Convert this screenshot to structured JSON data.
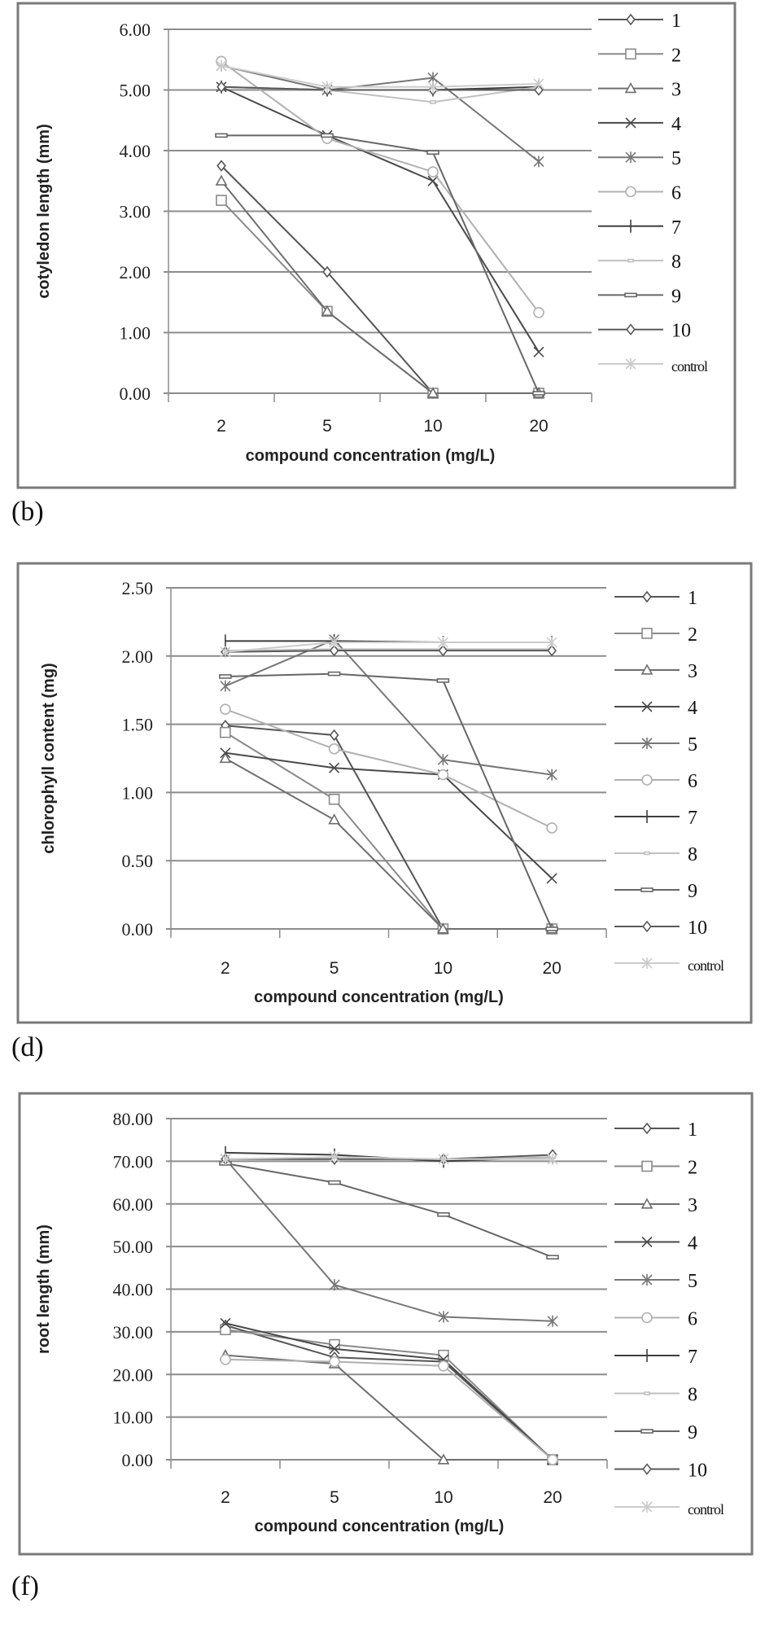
{
  "figure": {
    "panels": [
      {
        "id": "b",
        "label": "(b)"
      },
      {
        "id": "d",
        "label": "(d)"
      },
      {
        "id": "f",
        "label": "(f)"
      }
    ]
  },
  "legend": {
    "entries": [
      "1",
      "2",
      "3",
      "4",
      "5",
      "6",
      "7",
      "8",
      "9",
      "10",
      "control"
    ],
    "markers": [
      "diamond",
      "square",
      "triangle",
      "x-cross",
      "asterisk",
      "circle",
      "plus",
      "small-dash",
      "dash",
      "diamond",
      "asterisk"
    ],
    "colors": [
      "#555555",
      "#8a8a8a",
      "#6e6e6e",
      "#4a4a4a",
      "#777777",
      "#b0b0b0",
      "#3e3e3e",
      "#c0c0c0",
      "#666666",
      "#5a5a5a",
      "#cccccc"
    ]
  },
  "chart_data": [
    {
      "type": "line",
      "panel": "(b)",
      "title": "",
      "xlabel": "compound concentration (mg/L)",
      "ylabel": "cotyledon length (mm)",
      "categories": [
        "2",
        "5",
        "10",
        "20"
      ],
      "ylim": [
        0,
        6
      ],
      "yticks": [
        "0.00",
        "1.00",
        "2.00",
        "3.00",
        "4.00",
        "5.00",
        "6.00"
      ],
      "grid": true,
      "legend_position": "right",
      "series": [
        {
          "name": "1",
          "values": [
            3.75,
            2.0,
            0.0,
            0.0
          ]
        },
        {
          "name": "2",
          "values": [
            3.18,
            1.35,
            0.0,
            0.0
          ]
        },
        {
          "name": "3",
          "values": [
            3.5,
            1.35,
            0.0,
            0.0
          ]
        },
        {
          "name": "4",
          "values": [
            5.05,
            4.25,
            3.5,
            0.68
          ]
        },
        {
          "name": "5",
          "values": [
            5.4,
            5.0,
            5.2,
            3.82
          ]
        },
        {
          "name": "6",
          "values": [
            5.47,
            4.2,
            3.65,
            1.33
          ]
        },
        {
          "name": "7",
          "values": [
            5.05,
            5.0,
            5.0,
            5.05
          ]
        },
        {
          "name": "8",
          "values": [
            5.05,
            5.0,
            4.8,
            5.05
          ]
        },
        {
          "name": "9",
          "values": [
            4.25,
            4.25,
            3.97,
            0.0
          ]
        },
        {
          "name": "10",
          "values": [
            5.05,
            5.0,
            5.0,
            5.0
          ]
        },
        {
          "name": "control",
          "values": [
            5.4,
            5.05,
            5.05,
            5.1
          ]
        }
      ]
    },
    {
      "type": "line",
      "panel": "(d)",
      "title": "",
      "xlabel": "compound concentration (mg/L)",
      "ylabel": "chlorophyll content (mg)",
      "categories": [
        "2",
        "5",
        "10",
        "20"
      ],
      "ylim": [
        0,
        2.5
      ],
      "yticks": [
        "0.00",
        "0.50",
        "1.00",
        "1.50",
        "2.00",
        "2.50"
      ],
      "grid": true,
      "legend_position": "right",
      "series": [
        {
          "name": "1",
          "values": [
            1.49,
            1.42,
            0.0,
            0.0
          ]
        },
        {
          "name": "2",
          "values": [
            1.44,
            0.95,
            0.0,
            0.0
          ]
        },
        {
          "name": "3",
          "values": [
            1.25,
            0.8,
            0.0,
            0.0
          ]
        },
        {
          "name": "4",
          "values": [
            1.29,
            1.18,
            1.13,
            0.37
          ]
        },
        {
          "name": "5",
          "values": [
            1.78,
            2.12,
            1.24,
            1.13
          ]
        },
        {
          "name": "6",
          "values": [
            1.61,
            1.32,
            1.13,
            0.74
          ]
        },
        {
          "name": "7",
          "values": [
            2.11,
            2.11,
            2.1,
            2.1
          ]
        },
        {
          "name": "8",
          "values": [
            2.04,
            2.05,
            2.05,
            2.05
          ]
        },
        {
          "name": "9",
          "values": [
            1.85,
            1.87,
            1.82,
            0.0
          ]
        },
        {
          "name": "10",
          "values": [
            2.03,
            2.04,
            2.04,
            2.04
          ]
        },
        {
          "name": "control",
          "values": [
            2.03,
            2.1,
            2.1,
            2.1
          ]
        }
      ]
    },
    {
      "type": "line",
      "panel": "(f)",
      "title": "",
      "xlabel": "compound concentration (mg/L)",
      "ylabel": "root length (mm)",
      "categories": [
        "2",
        "5",
        "10",
        "20"
      ],
      "ylim": [
        0,
        80
      ],
      "yticks": [
        "0.00",
        "10.00",
        "20.00",
        "30.00",
        "40.00",
        "50.00",
        "60.00",
        "70.00",
        "80.00"
      ],
      "grid": true,
      "legend_position": "right",
      "series": [
        {
          "name": "1",
          "values": [
            31.5,
            24.0,
            23.0,
            0.0
          ]
        },
        {
          "name": "2",
          "values": [
            30.5,
            27.0,
            24.5,
            0.0
          ]
        },
        {
          "name": "3",
          "values": [
            24.5,
            22.5,
            0.0,
            0.0
          ]
        },
        {
          "name": "4",
          "values": [
            32.0,
            26.0,
            23.5,
            0.0
          ]
        },
        {
          "name": "5",
          "values": [
            70.5,
            41.0,
            33.5,
            32.5
          ]
        },
        {
          "name": "6",
          "values": [
            23.5,
            23.0,
            22.0,
            0.0
          ]
        },
        {
          "name": "7",
          "values": [
            72.0,
            71.5,
            70.0,
            71.0
          ]
        },
        {
          "name": "8",
          "values": [
            70.5,
            70.5,
            70.5,
            71.0
          ]
        },
        {
          "name": "9",
          "values": [
            69.5,
            65.0,
            57.5,
            47.5
          ]
        },
        {
          "name": "10",
          "values": [
            70.5,
            70.5,
            70.5,
            71.5
          ]
        },
        {
          "name": "control",
          "values": [
            70.5,
            71.0,
            70.5,
            70.5
          ]
        }
      ]
    }
  ]
}
